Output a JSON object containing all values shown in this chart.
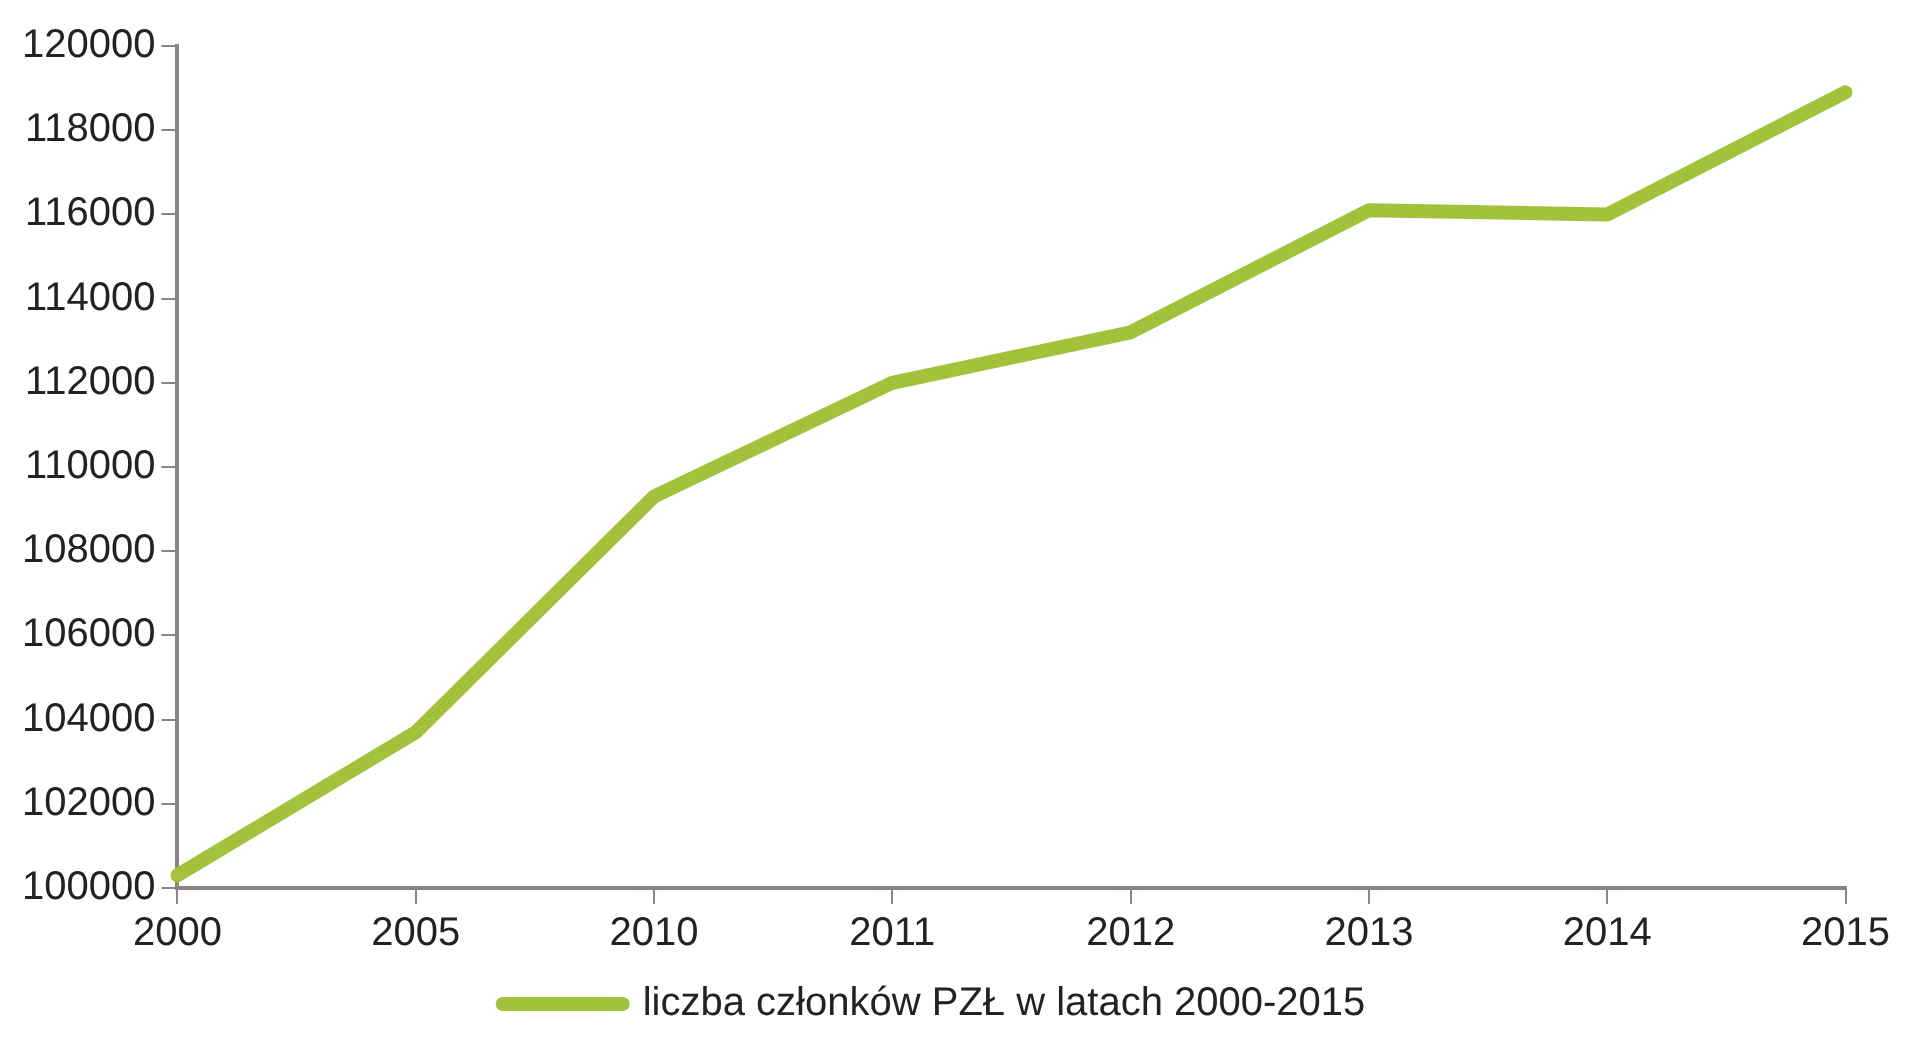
{
  "chart_data": {
    "type": "line",
    "categories": [
      "2000",
      "2005",
      "2010",
      "2011",
      "2012",
      "2013",
      "2014",
      "2015"
    ],
    "series": [
      {
        "name": "liczba członków PZŁ w latach 2000-2015",
        "color": "#a3c13a",
        "values": [
          100300,
          103700,
          109300,
          112000,
          113200,
          116100,
          116000,
          118900
        ]
      }
    ],
    "ylim": [
      100000,
      120000
    ],
    "yticks": [
      100000,
      102000,
      104000,
      106000,
      108000,
      110000,
      112000,
      114000,
      116000,
      118000,
      120000
    ],
    "grid": false,
    "legend": "bottom",
    "marker": "none",
    "line_style": "solid"
  }
}
